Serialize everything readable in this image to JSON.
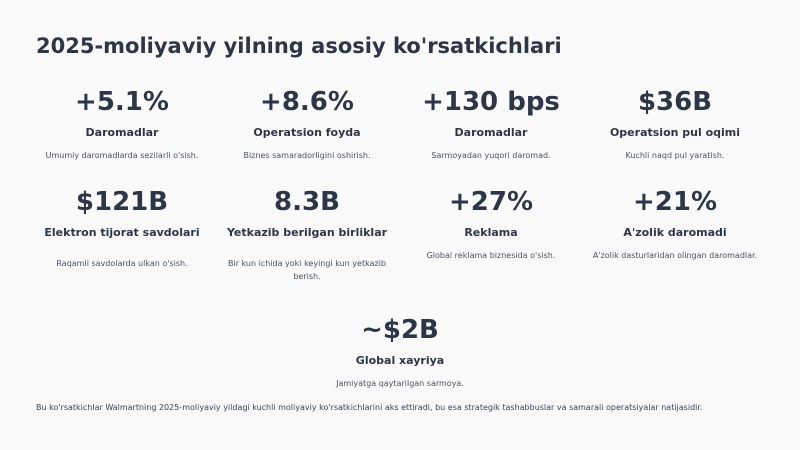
{
  "title": "2025-moliyaviy yilning asosiy ko'rsatkichlari",
  "metrics": [
    {
      "value": "+5.1%",
      "label": "Daromadlar",
      "desc": "Umumiy daromadlarda sezilarli o'sish."
    },
    {
      "value": "+8.6%",
      "label": "Operatsion foyda",
      "desc": "Biznes samaradorligini oshirish."
    },
    {
      "value": "+130 bps",
      "label": "Daromadlar",
      "desc": "Sarmoyadan yuqori daromad."
    },
    {
      "value": "$36B",
      "label": "Operatsion pul oqimi",
      "desc": "Kuchli naqd pul yaratish."
    },
    {
      "value": "$121B",
      "label": "Elektron tijorat savdolari",
      "desc": "Raqamli savdolarda ulkan o'sish."
    },
    {
      "value": "8.3B",
      "label": "Yetkazib berilgan birliklar",
      "desc": "Bir kun ichida yoki keyingi kun yetkazib berish."
    },
    {
      "value": "+27%",
      "label": "Reklama",
      "desc": "Global reklama biznesida o'sish."
    },
    {
      "value": "+21%",
      "label": "A'zolik daromadi",
      "desc": "A'zolik dasturlaridan olingan daromadlar."
    },
    {
      "value": "~$2B",
      "label": "Global xayriya",
      "desc": "Jamiyatga qaytarilgan sarmoya."
    }
  ],
  "footnote": "Bu ko'rsatkichlar Walmartning 2025-moliyaviy yildagi kuchli moliyaviy ko'rsatkichlarini aks ettiradi, bu esa strategik tashabbuslar va samarali operatsiyalar natijasidir."
}
